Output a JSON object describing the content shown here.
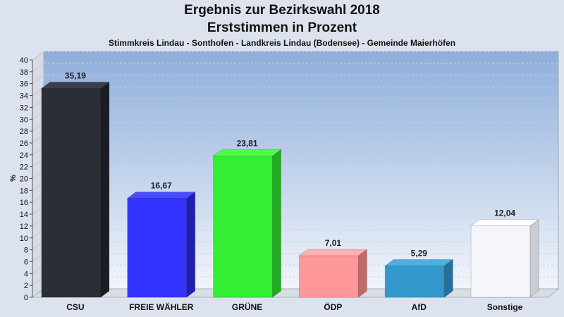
{
  "header": {
    "title": "Ergebnis zur Bezirkswahl 2018",
    "subtitle": "Erststimmen in Prozent",
    "caption": "Stimmkreis Lindau - Sonthofen - Landkreis Lindau (Bodensee) - Gemeinde Maierhöfen"
  },
  "chart_data": {
    "type": "bar",
    "title": "Ergebnis zur Bezirkswahl 2018",
    "subtitle": "Erststimmen in Prozent",
    "ylabel": "%",
    "xlabel": "",
    "ylim": [
      0,
      40
    ],
    "ytick_step": 2,
    "grid": true,
    "legend": "none",
    "categories": [
      "CSU",
      "FREIE WÄHLER",
      "GRÜNE",
      "ÖDP",
      "AfD",
      "Sonstige"
    ],
    "values": [
      35.19,
      16.67,
      23.81,
      7.01,
      5.29,
      12.04
    ],
    "value_labels": [
      "35,19",
      "16,67",
      "23,81",
      "7,01",
      "5,29",
      "12,04"
    ],
    "colors": [
      "#2a2e36",
      "#3333ff",
      "#33ee33",
      "#ff9999",
      "#3399cc",
      "#f4f6fa"
    ],
    "side_colors": [
      "#1a1d24",
      "#2020b0",
      "#22aa22",
      "#c06a6a",
      "#23709a",
      "#c8ccd3"
    ],
    "top_colors": [
      "#3a3f4a",
      "#4b4bff",
      "#4dff4d",
      "#ffb0b0",
      "#4cb0e0",
      "#ffffff"
    ]
  }
}
